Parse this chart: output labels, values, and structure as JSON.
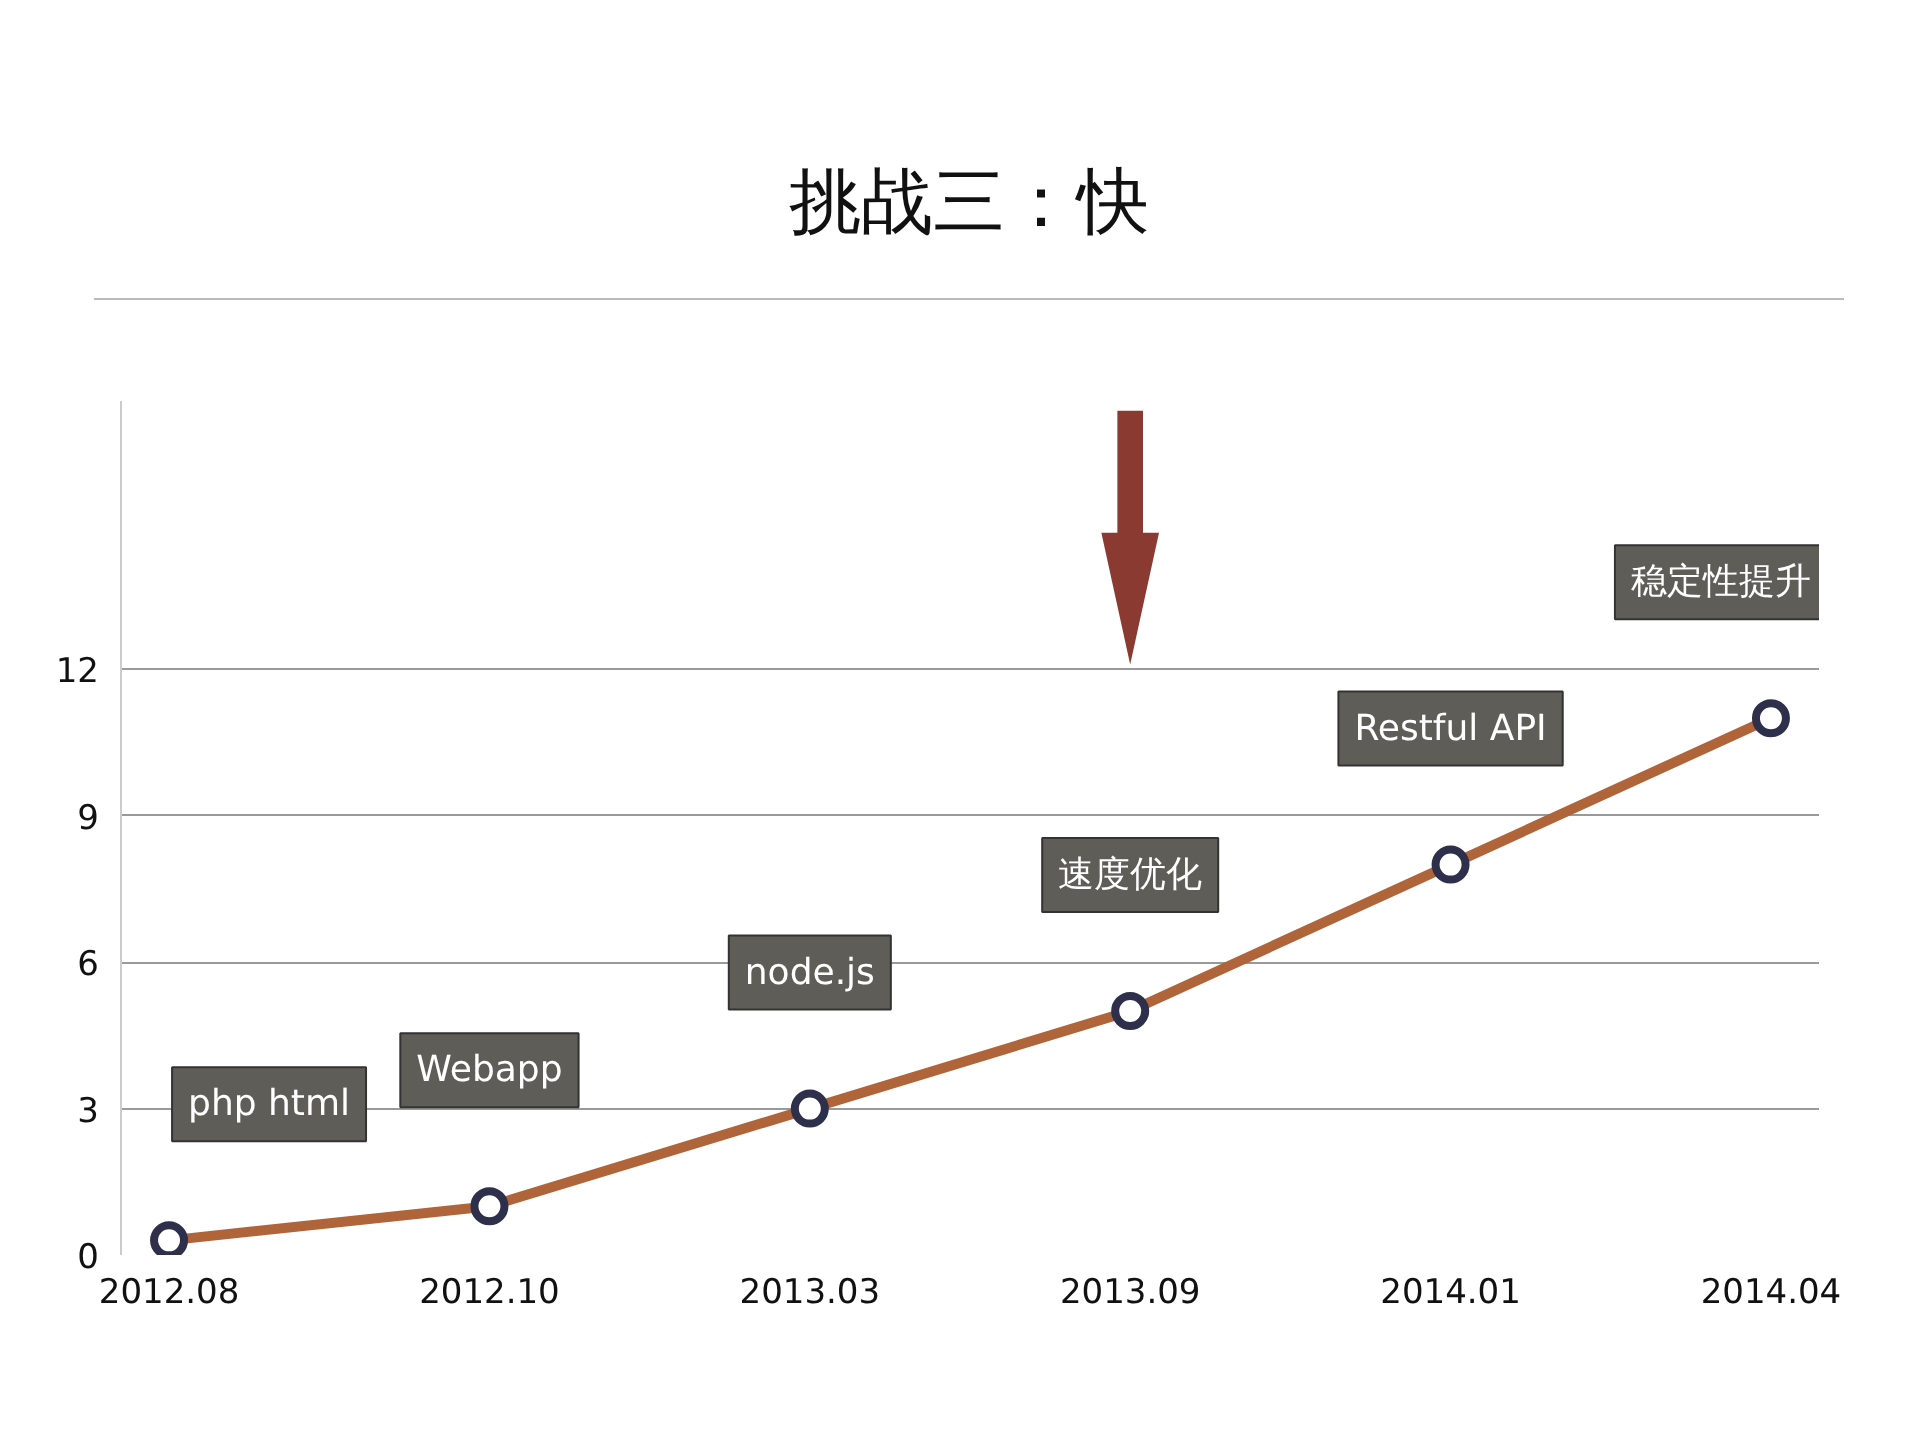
{
  "chart_data": {
    "type": "line",
    "title": "挑战三：快",
    "categories": [
      "2012.08",
      "2012.10",
      "2013.03",
      "2013.09",
      "2014.01",
      "2014.04"
    ],
    "series": [
      {
        "color": "#b0643a",
        "values": [
          0.3,
          1,
          3,
          5,
          8,
          11
        ]
      }
    ],
    "marker": "circle",
    "line_style": "solid",
    "grid": "y",
    "ylim": [
      0,
      17.5
    ],
    "yticks": [
      0,
      3,
      6,
      9,
      12
    ],
    "annotations": [
      "php html",
      "Webapp",
      "node.js",
      "速度优化",
      "Restful API",
      "稳定性提升"
    ]
  }
}
